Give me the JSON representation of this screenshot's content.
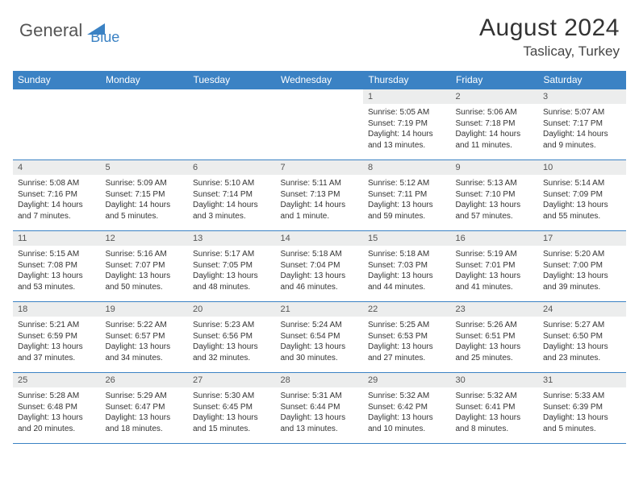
{
  "logo": {
    "general": "General",
    "blue": "Blue",
    "accent_color": "#3b82c4"
  },
  "title": "August 2024",
  "location": "Taslicay, Turkey",
  "theme": {
    "header_bg": "#3b82c4",
    "header_text": "#ffffff",
    "daynum_bg": "#eceded",
    "border_color": "#3b82c4",
    "body_text": "#333333"
  },
  "weekdays": [
    "Sunday",
    "Monday",
    "Tuesday",
    "Wednesday",
    "Thursday",
    "Friday",
    "Saturday"
  ],
  "weeks": [
    [
      {
        "day": "",
        "sunrise": "",
        "sunset": "",
        "daylight": ""
      },
      {
        "day": "",
        "sunrise": "",
        "sunset": "",
        "daylight": ""
      },
      {
        "day": "",
        "sunrise": "",
        "sunset": "",
        "daylight": ""
      },
      {
        "day": "",
        "sunrise": "",
        "sunset": "",
        "daylight": ""
      },
      {
        "day": "1",
        "sunrise": "Sunrise: 5:05 AM",
        "sunset": "Sunset: 7:19 PM",
        "daylight": "Daylight: 14 hours and 13 minutes."
      },
      {
        "day": "2",
        "sunrise": "Sunrise: 5:06 AM",
        "sunset": "Sunset: 7:18 PM",
        "daylight": "Daylight: 14 hours and 11 minutes."
      },
      {
        "day": "3",
        "sunrise": "Sunrise: 5:07 AM",
        "sunset": "Sunset: 7:17 PM",
        "daylight": "Daylight: 14 hours and 9 minutes."
      }
    ],
    [
      {
        "day": "4",
        "sunrise": "Sunrise: 5:08 AM",
        "sunset": "Sunset: 7:16 PM",
        "daylight": "Daylight: 14 hours and 7 minutes."
      },
      {
        "day": "5",
        "sunrise": "Sunrise: 5:09 AM",
        "sunset": "Sunset: 7:15 PM",
        "daylight": "Daylight: 14 hours and 5 minutes."
      },
      {
        "day": "6",
        "sunrise": "Sunrise: 5:10 AM",
        "sunset": "Sunset: 7:14 PM",
        "daylight": "Daylight: 14 hours and 3 minutes."
      },
      {
        "day": "7",
        "sunrise": "Sunrise: 5:11 AM",
        "sunset": "Sunset: 7:13 PM",
        "daylight": "Daylight: 14 hours and 1 minute."
      },
      {
        "day": "8",
        "sunrise": "Sunrise: 5:12 AM",
        "sunset": "Sunset: 7:11 PM",
        "daylight": "Daylight: 13 hours and 59 minutes."
      },
      {
        "day": "9",
        "sunrise": "Sunrise: 5:13 AM",
        "sunset": "Sunset: 7:10 PM",
        "daylight": "Daylight: 13 hours and 57 minutes."
      },
      {
        "day": "10",
        "sunrise": "Sunrise: 5:14 AM",
        "sunset": "Sunset: 7:09 PM",
        "daylight": "Daylight: 13 hours and 55 minutes."
      }
    ],
    [
      {
        "day": "11",
        "sunrise": "Sunrise: 5:15 AM",
        "sunset": "Sunset: 7:08 PM",
        "daylight": "Daylight: 13 hours and 53 minutes."
      },
      {
        "day": "12",
        "sunrise": "Sunrise: 5:16 AM",
        "sunset": "Sunset: 7:07 PM",
        "daylight": "Daylight: 13 hours and 50 minutes."
      },
      {
        "day": "13",
        "sunrise": "Sunrise: 5:17 AM",
        "sunset": "Sunset: 7:05 PM",
        "daylight": "Daylight: 13 hours and 48 minutes."
      },
      {
        "day": "14",
        "sunrise": "Sunrise: 5:18 AM",
        "sunset": "Sunset: 7:04 PM",
        "daylight": "Daylight: 13 hours and 46 minutes."
      },
      {
        "day": "15",
        "sunrise": "Sunrise: 5:18 AM",
        "sunset": "Sunset: 7:03 PM",
        "daylight": "Daylight: 13 hours and 44 minutes."
      },
      {
        "day": "16",
        "sunrise": "Sunrise: 5:19 AM",
        "sunset": "Sunset: 7:01 PM",
        "daylight": "Daylight: 13 hours and 41 minutes."
      },
      {
        "day": "17",
        "sunrise": "Sunrise: 5:20 AM",
        "sunset": "Sunset: 7:00 PM",
        "daylight": "Daylight: 13 hours and 39 minutes."
      }
    ],
    [
      {
        "day": "18",
        "sunrise": "Sunrise: 5:21 AM",
        "sunset": "Sunset: 6:59 PM",
        "daylight": "Daylight: 13 hours and 37 minutes."
      },
      {
        "day": "19",
        "sunrise": "Sunrise: 5:22 AM",
        "sunset": "Sunset: 6:57 PM",
        "daylight": "Daylight: 13 hours and 34 minutes."
      },
      {
        "day": "20",
        "sunrise": "Sunrise: 5:23 AM",
        "sunset": "Sunset: 6:56 PM",
        "daylight": "Daylight: 13 hours and 32 minutes."
      },
      {
        "day": "21",
        "sunrise": "Sunrise: 5:24 AM",
        "sunset": "Sunset: 6:54 PM",
        "daylight": "Daylight: 13 hours and 30 minutes."
      },
      {
        "day": "22",
        "sunrise": "Sunrise: 5:25 AM",
        "sunset": "Sunset: 6:53 PM",
        "daylight": "Daylight: 13 hours and 27 minutes."
      },
      {
        "day": "23",
        "sunrise": "Sunrise: 5:26 AM",
        "sunset": "Sunset: 6:51 PM",
        "daylight": "Daylight: 13 hours and 25 minutes."
      },
      {
        "day": "24",
        "sunrise": "Sunrise: 5:27 AM",
        "sunset": "Sunset: 6:50 PM",
        "daylight": "Daylight: 13 hours and 23 minutes."
      }
    ],
    [
      {
        "day": "25",
        "sunrise": "Sunrise: 5:28 AM",
        "sunset": "Sunset: 6:48 PM",
        "daylight": "Daylight: 13 hours and 20 minutes."
      },
      {
        "day": "26",
        "sunrise": "Sunrise: 5:29 AM",
        "sunset": "Sunset: 6:47 PM",
        "daylight": "Daylight: 13 hours and 18 minutes."
      },
      {
        "day": "27",
        "sunrise": "Sunrise: 5:30 AM",
        "sunset": "Sunset: 6:45 PM",
        "daylight": "Daylight: 13 hours and 15 minutes."
      },
      {
        "day": "28",
        "sunrise": "Sunrise: 5:31 AM",
        "sunset": "Sunset: 6:44 PM",
        "daylight": "Daylight: 13 hours and 13 minutes."
      },
      {
        "day": "29",
        "sunrise": "Sunrise: 5:32 AM",
        "sunset": "Sunset: 6:42 PM",
        "daylight": "Daylight: 13 hours and 10 minutes."
      },
      {
        "day": "30",
        "sunrise": "Sunrise: 5:32 AM",
        "sunset": "Sunset: 6:41 PM",
        "daylight": "Daylight: 13 hours and 8 minutes."
      },
      {
        "day": "31",
        "sunrise": "Sunrise: 5:33 AM",
        "sunset": "Sunset: 6:39 PM",
        "daylight": "Daylight: 13 hours and 5 minutes."
      }
    ]
  ]
}
